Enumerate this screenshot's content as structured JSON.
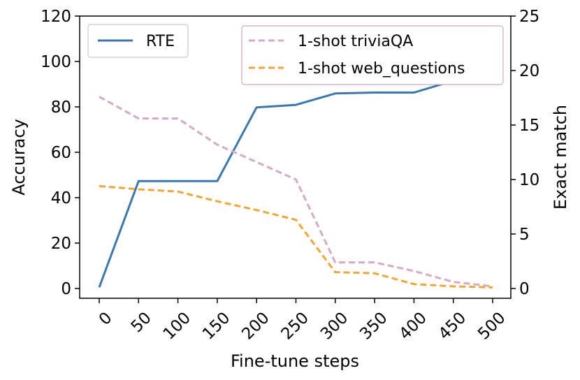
{
  "chart_data": {
    "type": "line",
    "x": [
      0,
      50,
      100,
      150,
      200,
      250,
      300,
      350,
      400,
      450,
      500
    ],
    "xlabel": "Fine-tune steps",
    "ylabel_left": "Accuracy",
    "ylabel_right": "Exact match",
    "ylim_left": [
      0,
      120
    ],
    "ylim_right": [
      0,
      25
    ],
    "yticks_left": [
      0,
      20,
      40,
      60,
      80,
      100,
      120
    ],
    "yticks_right": [
      0,
      5,
      10,
      15,
      20,
      25
    ],
    "series": [
      {
        "name": "RTE",
        "axis": "left",
        "style": "solid",
        "color": "#3a78b0",
        "values": [
          0.5,
          47.3,
          47.3,
          47.3,
          79.8,
          80.9,
          85.9,
          86.3,
          86.3,
          91.5,
          90.9
        ]
      },
      {
        "name": "1-shot triviaQA",
        "axis": "right",
        "style": "dashed",
        "color": "#d6a9c6",
        "values": [
          17.6,
          15.6,
          15.6,
          13.2,
          11.6,
          10.0,
          2.4,
          2.4,
          1.6,
          0.6,
          0.2
        ]
      },
      {
        "name": "1-shot web_questions",
        "axis": "right",
        "style": "dashed",
        "color": "#f2a633",
        "values": [
          9.4,
          9.1,
          8.9,
          8.0,
          7.2,
          6.3,
          1.5,
          1.4,
          0.4,
          0.2,
          0.1
        ]
      }
    ],
    "legends": [
      {
        "placement": "top-left",
        "entries": [
          "RTE"
        ]
      },
      {
        "placement": "top-right",
        "entries": [
          "1-shot triviaQA",
          "1-shot web_questions"
        ]
      }
    ],
    "grid": false
  }
}
